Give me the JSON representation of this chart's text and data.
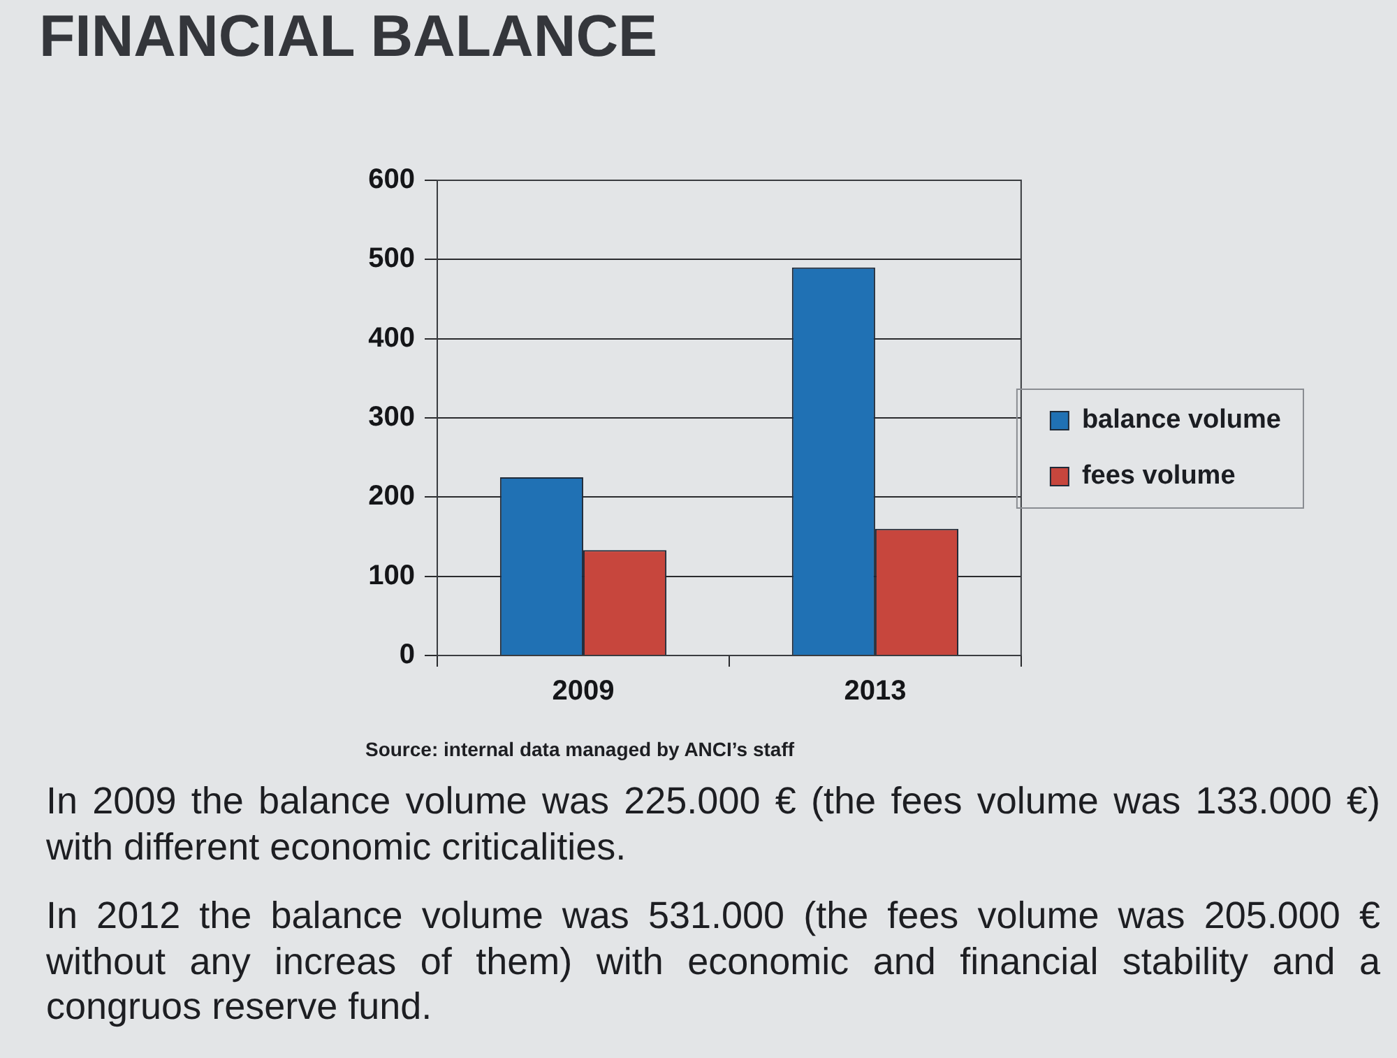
{
  "chart_data": {
    "type": "bar",
    "title": "FINANCIAL BALANCE",
    "categories": [
      "2009",
      "2013"
    ],
    "series": [
      {
        "name": "balance volume",
        "color": "#2071b4",
        "values": [
          225,
          490
        ]
      },
      {
        "name": "fees volume",
        "color": "#c7463d",
        "values": [
          133,
          160
        ]
      }
    ],
    "ylim": [
      0,
      600
    ],
    "yticks": [
      0,
      100,
      200,
      300,
      400,
      500,
      600
    ],
    "grid": "y",
    "legend": "right",
    "annotations": [
      "Source: internal data managed by ANCI’s staff",
      "In 2009 the balance volume was 225.000 € (the fees volume was 133.000 €) with different economic criticalities.",
      "In 2012 the balance volume was 531.000 (the fees volume was 205.000 € without any increas of them) with economic and financial stability and a congruos reserve fund."
    ]
  }
}
